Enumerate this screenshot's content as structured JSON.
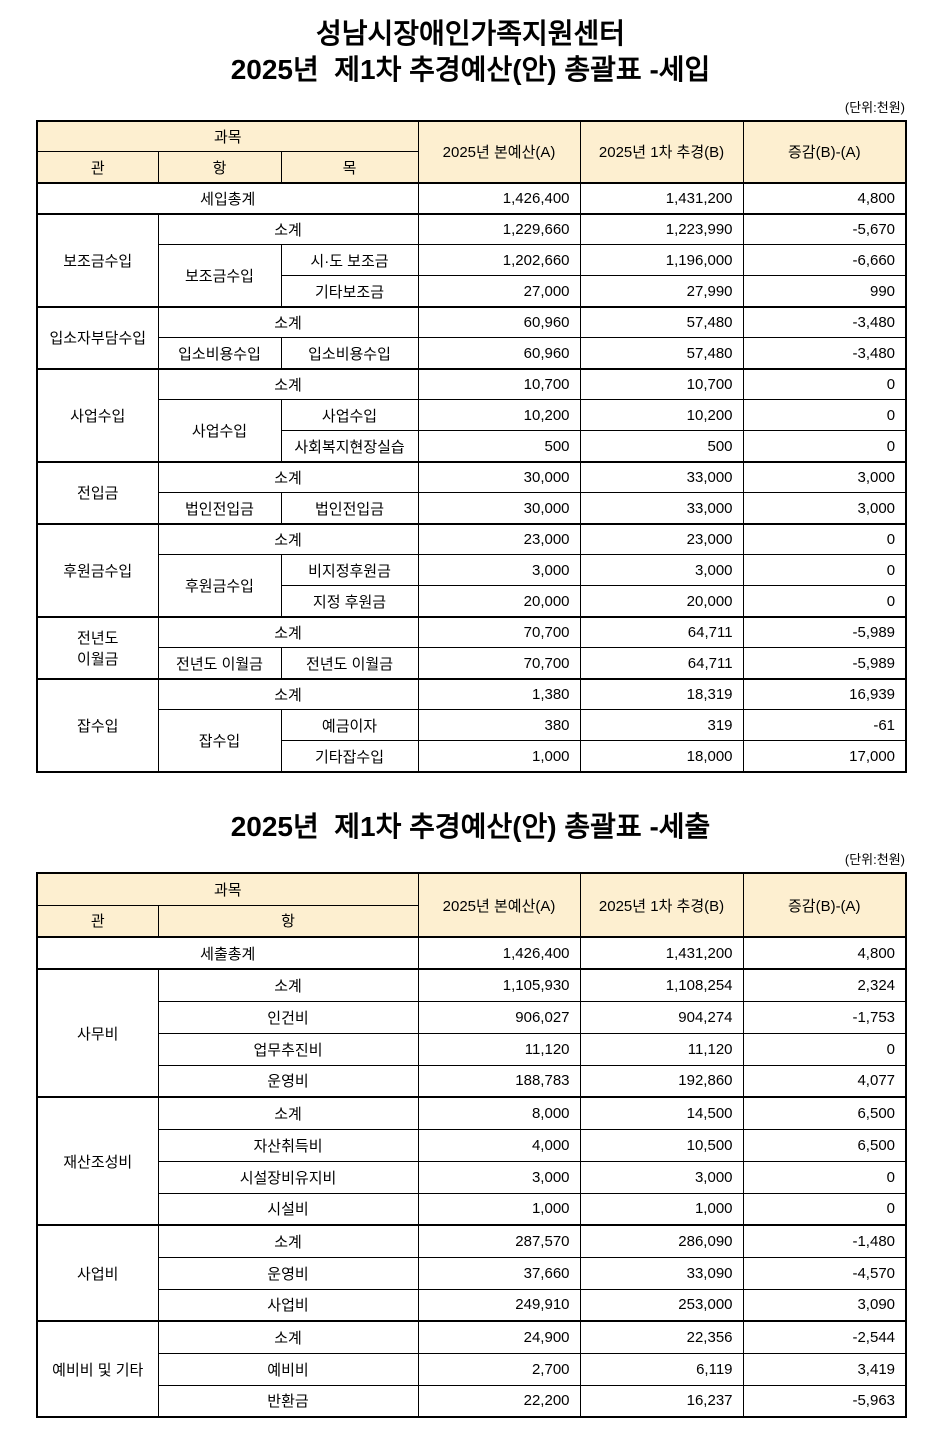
{
  "doc": {
    "org_title": "성남시장애인가족지원센터",
    "unit_note": "(단위:천원)"
  },
  "colors": {
    "header_bg": "#FDEFD0",
    "border": "#000000"
  },
  "revenue": {
    "title": "2025년  제1차 추경예산(안) 총괄표 -세입",
    "unit": "(단위:천원)",
    "header": {
      "subject": "과목",
      "gwan": "관",
      "hang": "항",
      "mok": "목",
      "budget_a": "2025년 본예산(A)",
      "budget_b": "2025년 1차 추경(B)",
      "diff": "증감(B)-(A)"
    },
    "total": {
      "label": "세입총계",
      "a": "1,426,400",
      "b": "1,431,200",
      "d": "4,800"
    },
    "groups": [
      {
        "gwan": "보조금수입",
        "sub": {
          "label": "소계",
          "a": "1,229,660",
          "b": "1,223,990",
          "d": "-5,670"
        },
        "hang": "보조금수입",
        "items": [
          {
            "mok": "시·도 보조금",
            "a": "1,202,660",
            "b": "1,196,000",
            "d": "-6,660"
          },
          {
            "mok": "기타보조금",
            "a": "27,000",
            "b": "27,990",
            "d": "990"
          }
        ]
      },
      {
        "gwan": "입소자부담수입",
        "sub": {
          "label": "소계",
          "a": "60,960",
          "b": "57,480",
          "d": "-3,480"
        },
        "hang": "입소비용수입",
        "items": [
          {
            "mok": "입소비용수입",
            "a": "60,960",
            "b": "57,480",
            "d": "-3,480"
          }
        ]
      },
      {
        "gwan": "사업수입",
        "sub": {
          "label": "소계",
          "a": "10,700",
          "b": "10,700",
          "d": "0"
        },
        "hang": "사업수입",
        "items": [
          {
            "mok": "사업수입",
            "a": "10,200",
            "b": "10,200",
            "d": "0"
          },
          {
            "mok": "사회복지현장실습",
            "a": "500",
            "b": "500",
            "d": "0"
          }
        ]
      },
      {
        "gwan": "전입금",
        "sub": {
          "label": "소계",
          "a": "30,000",
          "b": "33,000",
          "d": "3,000"
        },
        "hang": "법인전입금",
        "items": [
          {
            "mok": "법인전입금",
            "a": "30,000",
            "b": "33,000",
            "d": "3,000"
          }
        ]
      },
      {
        "gwan": "후원금수입",
        "sub": {
          "label": "소계",
          "a": "23,000",
          "b": "23,000",
          "d": "0"
        },
        "hang": "후원금수입",
        "items": [
          {
            "mok": "비지정후원금",
            "a": "3,000",
            "b": "3,000",
            "d": "0"
          },
          {
            "mok": "지정 후원금",
            "a": "20,000",
            "b": "20,000",
            "d": "0"
          }
        ]
      },
      {
        "gwan": "전년도\n이월금",
        "sub": {
          "label": "소계",
          "a": "70,700",
          "b": "64,711",
          "d": "-5,989"
        },
        "hang": "전년도 이월금",
        "items": [
          {
            "mok": "전년도 이월금",
            "a": "70,700",
            "b": "64,711",
            "d": "-5,989"
          }
        ]
      },
      {
        "gwan": "잡수입",
        "sub": {
          "label": "소계",
          "a": "1,380",
          "b": "18,319",
          "d": "16,939"
        },
        "hang": "잡수입",
        "items": [
          {
            "mok": "예금이자",
            "a": "380",
            "b": "319",
            "d": "-61"
          },
          {
            "mok": "기타잡수입",
            "a": "1,000",
            "b": "18,000",
            "d": "17,000"
          }
        ]
      }
    ]
  },
  "expenditure": {
    "title": "2025년  제1차 추경예산(안) 총괄표 -세출",
    "unit": "(단위:천원)",
    "header": {
      "subject": "과목",
      "gwan": "관",
      "hang": "항",
      "budget_a": "2025년 본예산(A)",
      "budget_b": "2025년 1차 추경(B)",
      "diff": "증감(B)-(A)"
    },
    "total": {
      "label": "세출총계",
      "a": "1,426,400",
      "b": "1,431,200",
      "d": "4,800"
    },
    "groups": [
      {
        "gwan": "사무비",
        "rows": [
          {
            "hang": "소계",
            "a": "1,105,930",
            "b": "1,108,254",
            "d": "2,324"
          },
          {
            "hang": "인건비",
            "a": "906,027",
            "b": "904,274",
            "d": "-1,753"
          },
          {
            "hang": "업무추진비",
            "a": "11,120",
            "b": "11,120",
            "d": "0"
          },
          {
            "hang": "운영비",
            "a": "188,783",
            "b": "192,860",
            "d": "4,077"
          }
        ]
      },
      {
        "gwan": "재산조성비",
        "rows": [
          {
            "hang": "소계",
            "a": "8,000",
            "b": "14,500",
            "d": "6,500"
          },
          {
            "hang": "자산취득비",
            "a": "4,000",
            "b": "10,500",
            "d": "6,500"
          },
          {
            "hang": "시설장비유지비",
            "a": "3,000",
            "b": "3,000",
            "d": "0"
          },
          {
            "hang": "시설비",
            "a": "1,000",
            "b": "1,000",
            "d": "0"
          }
        ]
      },
      {
        "gwan": "사업비",
        "rows": [
          {
            "hang": "소계",
            "a": "287,570",
            "b": "286,090",
            "d": "-1,480"
          },
          {
            "hang": "운영비",
            "a": "37,660",
            "b": "33,090",
            "d": "-4,570"
          },
          {
            "hang": "사업비",
            "a": "249,910",
            "b": "253,000",
            "d": "3,090"
          }
        ]
      },
      {
        "gwan": "예비비 및 기타",
        "rows": [
          {
            "hang": "소계",
            "a": "24,900",
            "b": "22,356",
            "d": "-2,544"
          },
          {
            "hang": "예비비",
            "a": "2,700",
            "b": "6,119",
            "d": "3,419"
          },
          {
            "hang": "반환금",
            "a": "22,200",
            "b": "16,237",
            "d": "-5,963"
          }
        ]
      }
    ]
  }
}
